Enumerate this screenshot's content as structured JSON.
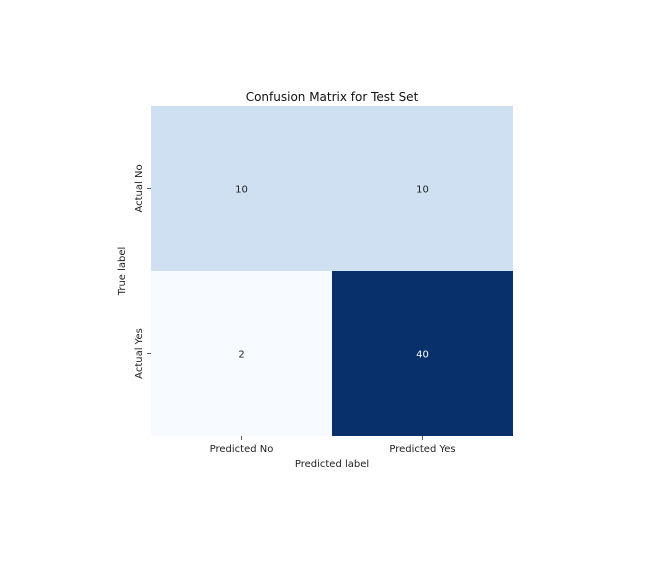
{
  "chart_data": {
    "type": "heatmap",
    "title": "Confusion Matrix for Test Set",
    "xlabel": "Predicted label",
    "ylabel": "True label",
    "x_categories": [
      "Predicted No",
      "Predicted Yes"
    ],
    "y_categories": [
      "Actual No",
      "Actual Yes"
    ],
    "values": [
      [
        10,
        10
      ],
      [
        2,
        40
      ]
    ],
    "colormap": "Blues",
    "color_low": "#f7fbff",
    "color_high": "#08306b",
    "text_dark": "#222222",
    "text_light": "#ffffff",
    "colorbar": false,
    "grid": false
  }
}
